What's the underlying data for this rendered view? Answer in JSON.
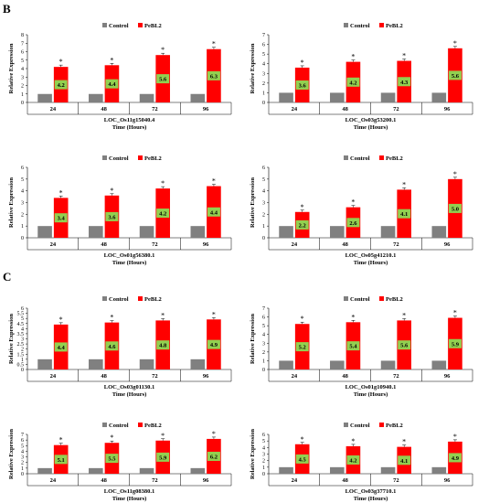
{
  "panels": [
    "B",
    "C"
  ],
  "colors": {
    "control": "#808080",
    "pebl2": "#FF0000",
    "value_box": "#92D050"
  },
  "chart_data": [
    {
      "type": "bar",
      "gene": "LOC_Os11g15040.4",
      "xlabel": "Time (Hours)",
      "ylabel": "Relative Expression",
      "categories": [
        "24",
        "48",
        "72",
        "96"
      ],
      "ylim": [
        0,
        8
      ],
      "yticks": [
        0,
        1,
        2,
        3,
        4,
        5,
        6,
        7,
        8
      ],
      "series": [
        {
          "name": "Control",
          "values": [
            1,
            1,
            1,
            1
          ]
        },
        {
          "name": "PeBL2",
          "values": [
            4.2,
            4.4,
            5.6,
            6.3
          ]
        }
      ],
      "value_labels": [
        "4.2",
        "4.4",
        "5.6",
        "6.3"
      ],
      "significance": [
        "*",
        "*",
        "*",
        "*"
      ]
    },
    {
      "type": "bar",
      "gene": "LOC_Os03g53200.1",
      "xlabel": "Time (Hours)",
      "ylabel": "Relative Expression",
      "categories": [
        "24",
        "48",
        "72",
        "96"
      ],
      "ylim": [
        0,
        7
      ],
      "yticks": [
        0,
        1,
        2,
        3,
        4,
        5,
        6,
        7
      ],
      "series": [
        {
          "name": "Control",
          "values": [
            1,
            1,
            1,
            1
          ]
        },
        {
          "name": "PeBL2",
          "values": [
            3.6,
            4.2,
            4.3,
            5.6
          ]
        }
      ],
      "value_labels": [
        "3.6",
        "4.2",
        "4.3",
        "5.6"
      ],
      "significance": [
        "*",
        "*",
        "*",
        "*"
      ]
    },
    {
      "type": "bar",
      "gene": "LOC_Os01g56380.1",
      "xlabel": "Time (Hours)",
      "ylabel": "Relative Expression",
      "categories": [
        "24",
        "48",
        "72",
        "96"
      ],
      "ylim": [
        0,
        6
      ],
      "yticks": [
        0,
        1,
        2,
        3,
        4,
        5,
        6
      ],
      "series": [
        {
          "name": "Control",
          "values": [
            1,
            1,
            1,
            1
          ]
        },
        {
          "name": "PeBL2",
          "values": [
            3.4,
            3.6,
            4.2,
            4.4
          ]
        }
      ],
      "value_labels": [
        "3.4",
        "3.6",
        "4.2",
        "4.4"
      ],
      "significance": [
        "*",
        "*",
        "*",
        "*"
      ]
    },
    {
      "type": "bar",
      "gene": "LOC_Os05g41210.1",
      "xlabel": "Time (Hours)",
      "ylabel": "Relative Expression",
      "categories": [
        "24",
        "48",
        "72",
        "96"
      ],
      "ylim": [
        0,
        6
      ],
      "yticks": [
        0,
        1,
        2,
        3,
        4,
        5,
        6
      ],
      "series": [
        {
          "name": "Control",
          "values": [
            1,
            1,
            1,
            1
          ]
        },
        {
          "name": "PeBL2",
          "values": [
            2.2,
            2.6,
            4.1,
            5.0
          ]
        }
      ],
      "value_labels": [
        "2.2",
        "2.6",
        "4.1",
        "5.0"
      ],
      "significance": [
        "*",
        "*",
        "*",
        "*"
      ]
    },
    {
      "type": "bar",
      "gene": "LOC_Os03g01130.1",
      "xlabel": "Time (Hours)",
      "ylabel": "Relative Expression",
      "categories": [
        "24",
        "48",
        "72",
        "96"
      ],
      "ylim": [
        0,
        6
      ],
      "yticks": [
        0,
        0.5,
        1,
        1.5,
        2,
        2.5,
        3,
        3.5,
        4,
        4.5,
        5,
        5.5,
        6
      ],
      "series": [
        {
          "name": "Control",
          "values": [
            1,
            1,
            1,
            1
          ]
        },
        {
          "name": "PeBL2",
          "values": [
            4.4,
            4.6,
            4.8,
            4.9
          ]
        }
      ],
      "value_labels": [
        "4.4",
        "4.6",
        "4.8",
        "4.9"
      ],
      "significance": [
        "*",
        "*",
        "*",
        "*"
      ]
    },
    {
      "type": "bar",
      "gene": "LOC_Os01g10940.1",
      "xlabel": "Time (Hours)",
      "ylabel": "Relative Expression",
      "categories": [
        "24",
        "48",
        "72",
        "96"
      ],
      "ylim": [
        0,
        7
      ],
      "yticks": [
        0,
        1,
        2,
        3,
        4,
        5,
        6,
        7
      ],
      "series": [
        {
          "name": "Control",
          "values": [
            1,
            1,
            1,
            1
          ]
        },
        {
          "name": "PeBL2",
          "values": [
            5.2,
            5.4,
            5.6,
            5.9
          ]
        }
      ],
      "value_labels": [
        "5.2",
        "5.4",
        "5.6",
        "5.9"
      ],
      "significance": [
        "*",
        "*",
        "*",
        "*"
      ]
    },
    {
      "type": "bar",
      "gene": "LOC_Os11g08380.1",
      "xlabel": "Time (Hours)",
      "ylabel": "Relative Expression",
      "categories": [
        "24",
        "48",
        "72",
        "96"
      ],
      "ylim": [
        0,
        7
      ],
      "yticks": [
        0,
        1,
        2,
        3,
        4,
        5,
        6,
        7
      ],
      "series": [
        {
          "name": "Control",
          "values": [
            1,
            1,
            1,
            1
          ]
        },
        {
          "name": "PeBL2",
          "values": [
            5.1,
            5.5,
            5.9,
            6.2
          ]
        }
      ],
      "value_labels": [
        "5.1",
        "5.5",
        "5.9",
        "6.2"
      ],
      "significance": [
        "*",
        "*",
        "*",
        "*"
      ]
    },
    {
      "type": "bar",
      "gene": "LOC_Os03g37710.1",
      "xlabel": "Time (Hours)",
      "ylabel": "Relative Expression",
      "categories": [
        "24",
        "48",
        "72",
        "96"
      ],
      "ylim": [
        0,
        6
      ],
      "yticks": [
        0,
        1,
        2,
        3,
        4,
        5,
        6
      ],
      "series": [
        {
          "name": "Control",
          "values": [
            1,
            1,
            1,
            1
          ]
        },
        {
          "name": "PeBL2",
          "values": [
            4.5,
            4.2,
            4.1,
            4.9
          ]
        }
      ],
      "value_labels": [
        "4.5",
        "4.2",
        "4.1",
        "4.9"
      ],
      "significance": [
        "*",
        "*",
        "*",
        "*"
      ]
    }
  ]
}
